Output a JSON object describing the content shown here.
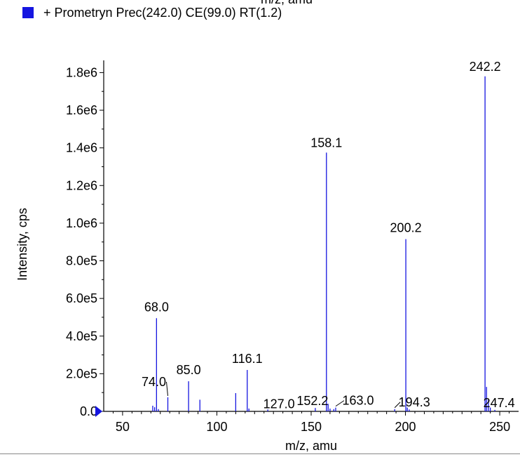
{
  "top_cut_label": "m/z, amu",
  "legend": {
    "label": "+ Prometryn Prec(242.0) CE(99.0) RT(1.2)",
    "color": "#1515e0"
  },
  "chart_data": {
    "type": "bar",
    "title": "",
    "xlabel": "m/z, amu",
    "ylabel": "Intensity, cps",
    "xlim": [
      40,
      260
    ],
    "ylim": [
      0,
      1850000
    ],
    "x_ticks": [
      {
        "value": 50,
        "label": "50"
      },
      {
        "value": 100,
        "label": "100"
      },
      {
        "value": 150,
        "label": "150"
      },
      {
        "value": 200,
        "label": "200"
      },
      {
        "value": 250,
        "label": "250"
      }
    ],
    "y_ticks": [
      {
        "value": 0,
        "label": "0.0"
      },
      {
        "value": 200000,
        "label": "2.0e5"
      },
      {
        "value": 400000,
        "label": "4.0e5"
      },
      {
        "value": 600000,
        "label": "6.0e5"
      },
      {
        "value": 800000,
        "label": "8.0e5"
      },
      {
        "value": 1000000,
        "label": "1.0e6"
      },
      {
        "value": 1200000,
        "label": "1.2e6"
      },
      {
        "value": 1400000,
        "label": "1.4e6"
      },
      {
        "value": 1600000,
        "label": "1.6e6"
      },
      {
        "value": 1800000,
        "label": "1.8e6"
      }
    ],
    "series_color": "#1515e0",
    "peaks": [
      {
        "mz": 66.0,
        "intensity": 30000
      },
      {
        "mz": 67.0,
        "intensity": 22000
      },
      {
        "mz": 68.0,
        "intensity": 495000
      },
      {
        "mz": 69.0,
        "intensity": 12000
      },
      {
        "mz": 74.0,
        "intensity": 75000
      },
      {
        "mz": 85.0,
        "intensity": 160000
      },
      {
        "mz": 91.0,
        "intensity": 62000
      },
      {
        "mz": 110.0,
        "intensity": 97000
      },
      {
        "mz": 116.1,
        "intensity": 220000
      },
      {
        "mz": 117.0,
        "intensity": 15000
      },
      {
        "mz": 127.0,
        "intensity": 10000
      },
      {
        "mz": 152.2,
        "intensity": 18000
      },
      {
        "mz": 158.1,
        "intensity": 1375000
      },
      {
        "mz": 159.0,
        "intensity": 40000
      },
      {
        "mz": 160.0,
        "intensity": 15000
      },
      {
        "mz": 162.0,
        "intensity": 12000
      },
      {
        "mz": 163.0,
        "intensity": 20000
      },
      {
        "mz": 194.3,
        "intensity": 12000
      },
      {
        "mz": 200.2,
        "intensity": 915000
      },
      {
        "mz": 201.0,
        "intensity": 20000
      },
      {
        "mz": 202.0,
        "intensity": 10000
      },
      {
        "mz": 242.2,
        "intensity": 1780000
      },
      {
        "mz": 243.0,
        "intensity": 130000
      },
      {
        "mz": 244.0,
        "intensity": 60000
      },
      {
        "mz": 245.0,
        "intensity": 20000
      },
      {
        "mz": 247.4,
        "intensity": 8000
      }
    ],
    "labels": [
      {
        "text": "242.2",
        "mz": 242.2,
        "intensity": 1780000
      },
      {
        "text": "158.1",
        "mz": 158.1,
        "intensity": 1375000
      },
      {
        "text": "200.2",
        "mz": 200.2,
        "intensity": 915000
      },
      {
        "text": "68.0",
        "mz": 68.0,
        "intensity": 495000
      },
      {
        "text": "116.1",
        "mz": 116.1,
        "intensity": 220000
      },
      {
        "text": "85.0",
        "mz": 85.0,
        "intensity": 160000
      },
      {
        "text": "74.0",
        "mz": 74.0,
        "intensity": 75000
      },
      {
        "text": "127.0",
        "mz": 127.0,
        "intensity": 10000
      },
      {
        "text": "152.2",
        "mz": 152.2,
        "intensity": 18000
      },
      {
        "text": "163.0",
        "mz": 163.0,
        "intensity": 20000
      },
      {
        "text": "194.3",
        "mz": 194.3,
        "intensity": 12000
      },
      {
        "text": "247.4",
        "mz": 247.4,
        "intensity": 8000
      }
    ],
    "baseline_marker": "left-triangle"
  }
}
